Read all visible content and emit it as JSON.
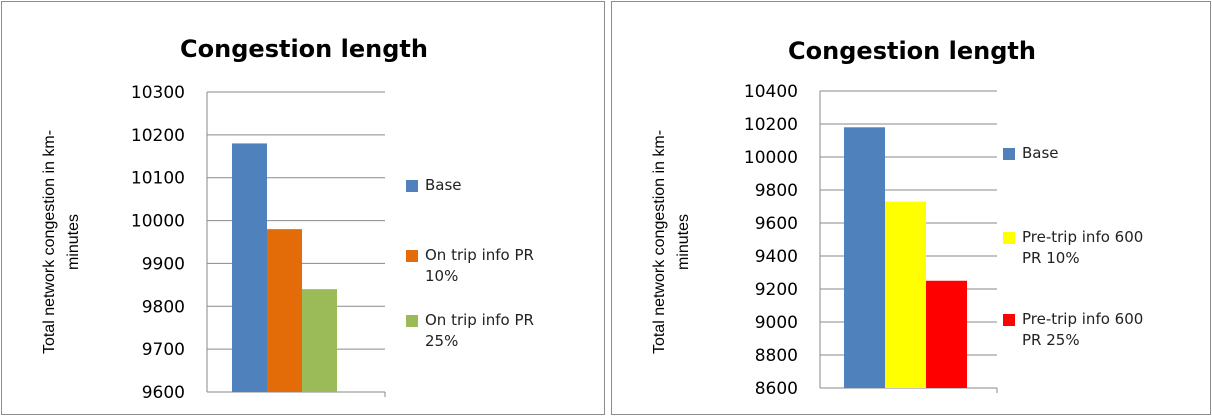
{
  "chart_data": [
    {
      "type": "bar",
      "title": "Congestion length",
      "ylabel_lines": [
        "Total network congestion in km-",
        "minutes"
      ],
      "xlabel": "",
      "ylim": [
        9600,
        10300
      ],
      "yticks": [
        9600,
        9700,
        9800,
        9900,
        10000,
        10100,
        10200,
        10300
      ],
      "grid": true,
      "legend_position": "right",
      "series": [
        {
          "name_lines": [
            "Base"
          ],
          "value": 10180,
          "color": "#4f81bd"
        },
        {
          "name_lines": [
            "On trip info PR",
            "10%"
          ],
          "value": 9980,
          "color": "#e36c09"
        },
        {
          "name_lines": [
            "On trip info PR",
            "25%"
          ],
          "value": 9840,
          "color": "#9bbb59"
        }
      ]
    },
    {
      "type": "bar",
      "title": "Congestion length",
      "ylabel_lines": [
        "Total network congestion in km-",
        "minutes"
      ],
      "xlabel": "",
      "ylim": [
        8600,
        10400
      ],
      "yticks": [
        8600,
        8800,
        9000,
        9200,
        9400,
        9600,
        9800,
        10000,
        10200,
        10400
      ],
      "grid": true,
      "legend_position": "right",
      "series": [
        {
          "name_lines": [
            "Base"
          ],
          "value": 10180,
          "color": "#4f81bd"
        },
        {
          "name_lines": [
            "Pre-trip info 600",
            "PR 10%"
          ],
          "value": 9730,
          "color": "#ffff00"
        },
        {
          "name_lines": [
            "Pre-trip info 600",
            "PR 25%"
          ],
          "value": 9250,
          "color": "#ff0000"
        }
      ]
    }
  ]
}
